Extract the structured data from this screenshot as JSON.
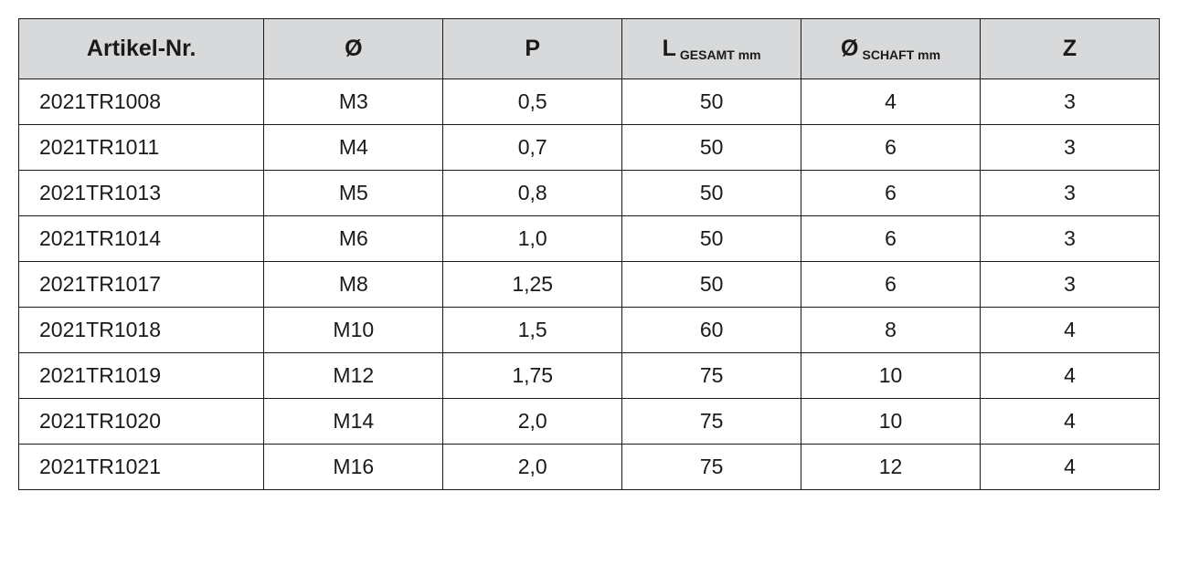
{
  "table": {
    "type": "table",
    "background_color": "#ffffff",
    "header_background": "#d8d9da",
    "border_color": "#1a1a1a",
    "text_color": "#1a1a1a",
    "header_fontsize": 25,
    "header_sub_fontsize": 14,
    "body_fontsize": 23,
    "columns": [
      {
        "label": "Artikel-Nr.",
        "sub": "",
        "width_pct": 21.5,
        "align": "left"
      },
      {
        "label": "Ø",
        "sub": "",
        "width_pct": 15.7,
        "align": "center"
      },
      {
        "label": "P",
        "sub": "",
        "width_pct": 15.7,
        "align": "center"
      },
      {
        "label": "L",
        "sub": "GESAMT mm",
        "width_pct": 15.7,
        "align": "center"
      },
      {
        "label": "Ø",
        "sub": "SCHAFT mm",
        "width_pct": 15.7,
        "align": "center"
      },
      {
        "label": "Z",
        "sub": "",
        "width_pct": 15.7,
        "align": "center"
      }
    ],
    "rows": [
      {
        "article": "2021TR1008",
        "diameter": "M3",
        "p": "0,5",
        "l_gesamt": "50",
        "d_schaft": "4",
        "z": "3"
      },
      {
        "article": "2021TR1011",
        "diameter": "M4",
        "p": "0,7",
        "l_gesamt": "50",
        "d_schaft": "6",
        "z": "3"
      },
      {
        "article": "2021TR1013",
        "diameter": "M5",
        "p": "0,8",
        "l_gesamt": "50",
        "d_schaft": "6",
        "z": "3"
      },
      {
        "article": "2021TR1014",
        "diameter": "M6",
        "p": "1,0",
        "l_gesamt": "50",
        "d_schaft": "6",
        "z": "3"
      },
      {
        "article": "2021TR1017",
        "diameter": "M8",
        "p": "1,25",
        "l_gesamt": "50",
        "d_schaft": "6",
        "z": "3"
      },
      {
        "article": "2021TR1018",
        "diameter": "M10",
        "p": "1,5",
        "l_gesamt": "60",
        "d_schaft": "8",
        "z": "4"
      },
      {
        "article": "2021TR1019",
        "diameter": "M12",
        "p": "1,75",
        "l_gesamt": "75",
        "d_schaft": "10",
        "z": "4"
      },
      {
        "article": "2021TR1020",
        "diameter": "M14",
        "p": "2,0",
        "l_gesamt": "75",
        "d_schaft": "10",
        "z": "4"
      },
      {
        "article": "2021TR1021",
        "diameter": "M16",
        "p": "2,0",
        "l_gesamt": "75",
        "d_schaft": "12",
        "z": "4"
      }
    ]
  }
}
